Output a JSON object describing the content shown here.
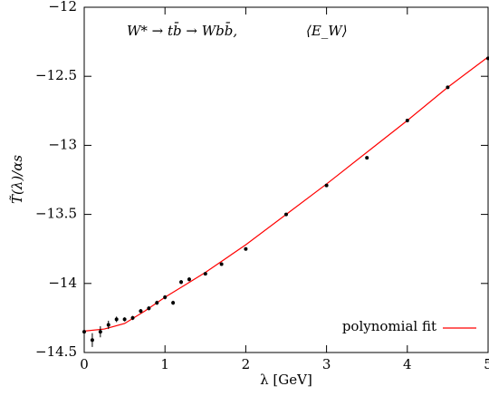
{
  "chart_data": {
    "type": "scatter",
    "annotations": [
      "W* → tb̄ → Wbb̄,",
      "⟨E_W⟩"
    ],
    "xlabel": "λ [GeV]",
    "ylabel": "T̃(λ)/αs",
    "xlim": [
      0,
      5
    ],
    "xticks": [
      0,
      1,
      2,
      3,
      4,
      5
    ],
    "ylim": [
      -14.5,
      -12
    ],
    "yticks": [
      {
        "value": -14.5,
        "label": "−14.5"
      },
      {
        "value": -14,
        "label": "−14"
      },
      {
        "value": -13.5,
        "label": "−13.5"
      },
      {
        "value": -13,
        "label": "−13"
      },
      {
        "value": -12.5,
        "label": "−12.5"
      },
      {
        "value": -12,
        "label": "−12"
      }
    ],
    "points": {
      "color": "#000000",
      "x": [
        0,
        0.1,
        0.2,
        0.3,
        0.4,
        0.5,
        0.6,
        0.7,
        0.8,
        0.9,
        1.0,
        1.1,
        1.2,
        1.3,
        1.5,
        1.7,
        2.0,
        2.5,
        3.0,
        3.5,
        4.0,
        4.5,
        5.0
      ],
      "values": [
        -14.35,
        -14.41,
        -14.35,
        -14.3,
        -14.26,
        -14.26,
        -14.25,
        -14.2,
        -14.18,
        -14.14,
        -14.1,
        -14.14,
        -13.99,
        -13.97,
        -13.93,
        -13.86,
        -13.75,
        -13.5,
        -13.29,
        -13.09,
        -12.82,
        -12.58,
        -12.37
      ],
      "errors": [
        0.01,
        0.05,
        0.04,
        0.03,
        0.02,
        0.015,
        0.015,
        0.015,
        0.015,
        0.015,
        0.015,
        0.015,
        0.015,
        0.015,
        0.01,
        0.01,
        0.01,
        0.01,
        0.01,
        0.01,
        0.01,
        0.01,
        0.01
      ]
    },
    "fit": {
      "name": "polynomial fit",
      "color": "#ff0000",
      "x": [
        0,
        0.25,
        0.5,
        0.75,
        1,
        1.25,
        1.5,
        2,
        2.5,
        3,
        3.5,
        4,
        4.5,
        5
      ],
      "values": [
        -14.345,
        -14.33,
        -14.29,
        -14.2,
        -14.1,
        -14.01,
        -13.92,
        -13.72,
        -13.5,
        -13.28,
        -13.05,
        -12.82,
        -12.58,
        -12.36
      ]
    },
    "legend": "lower right"
  }
}
